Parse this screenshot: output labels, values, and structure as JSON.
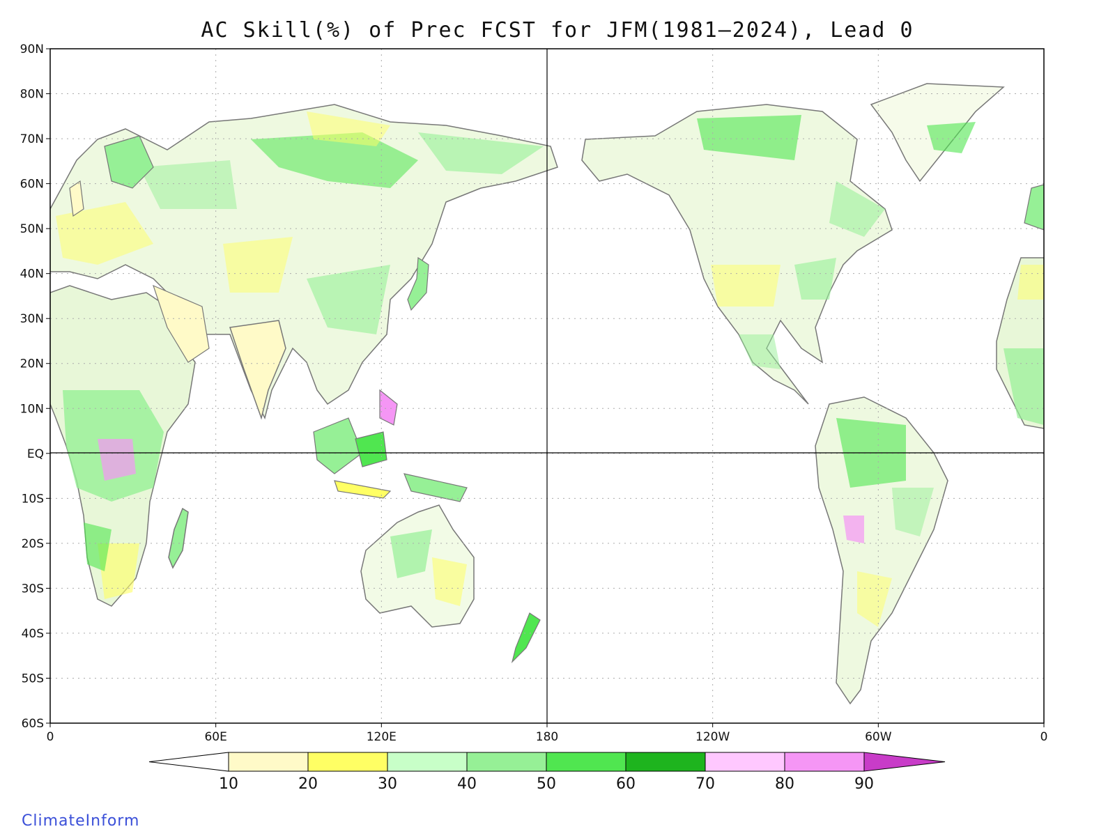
{
  "title": "AC Skill(%) of Prec FCST for JFM(1981–2024), Lead 0",
  "credit": "ClimateInform",
  "map": {
    "lat_labels": [
      "90N",
      "80N",
      "70N",
      "60N",
      "50N",
      "40N",
      "30N",
      "20N",
      "10N",
      "EQ",
      "10S",
      "20S",
      "30S",
      "40S",
      "50S",
      "60S"
    ],
    "lon_labels": [
      "0",
      "60E",
      "120E",
      "180",
      "120W",
      "60W",
      "0"
    ],
    "colors": {
      "land_outline": "#777777",
      "grid": "#aaaaaa",
      "frame": "#000000"
    }
  },
  "colorbar": {
    "ticks": [
      "10",
      "20",
      "30",
      "40",
      "50",
      "60",
      "70",
      "80",
      "90"
    ],
    "colors": [
      "#ffffff",
      "#fffac8",
      "#ffff64",
      "#c8ffc8",
      "#96f096",
      "#50e650",
      "#1eb41e",
      "#ffc8ff",
      "#f596f5",
      "#c83cc8"
    ]
  }
}
